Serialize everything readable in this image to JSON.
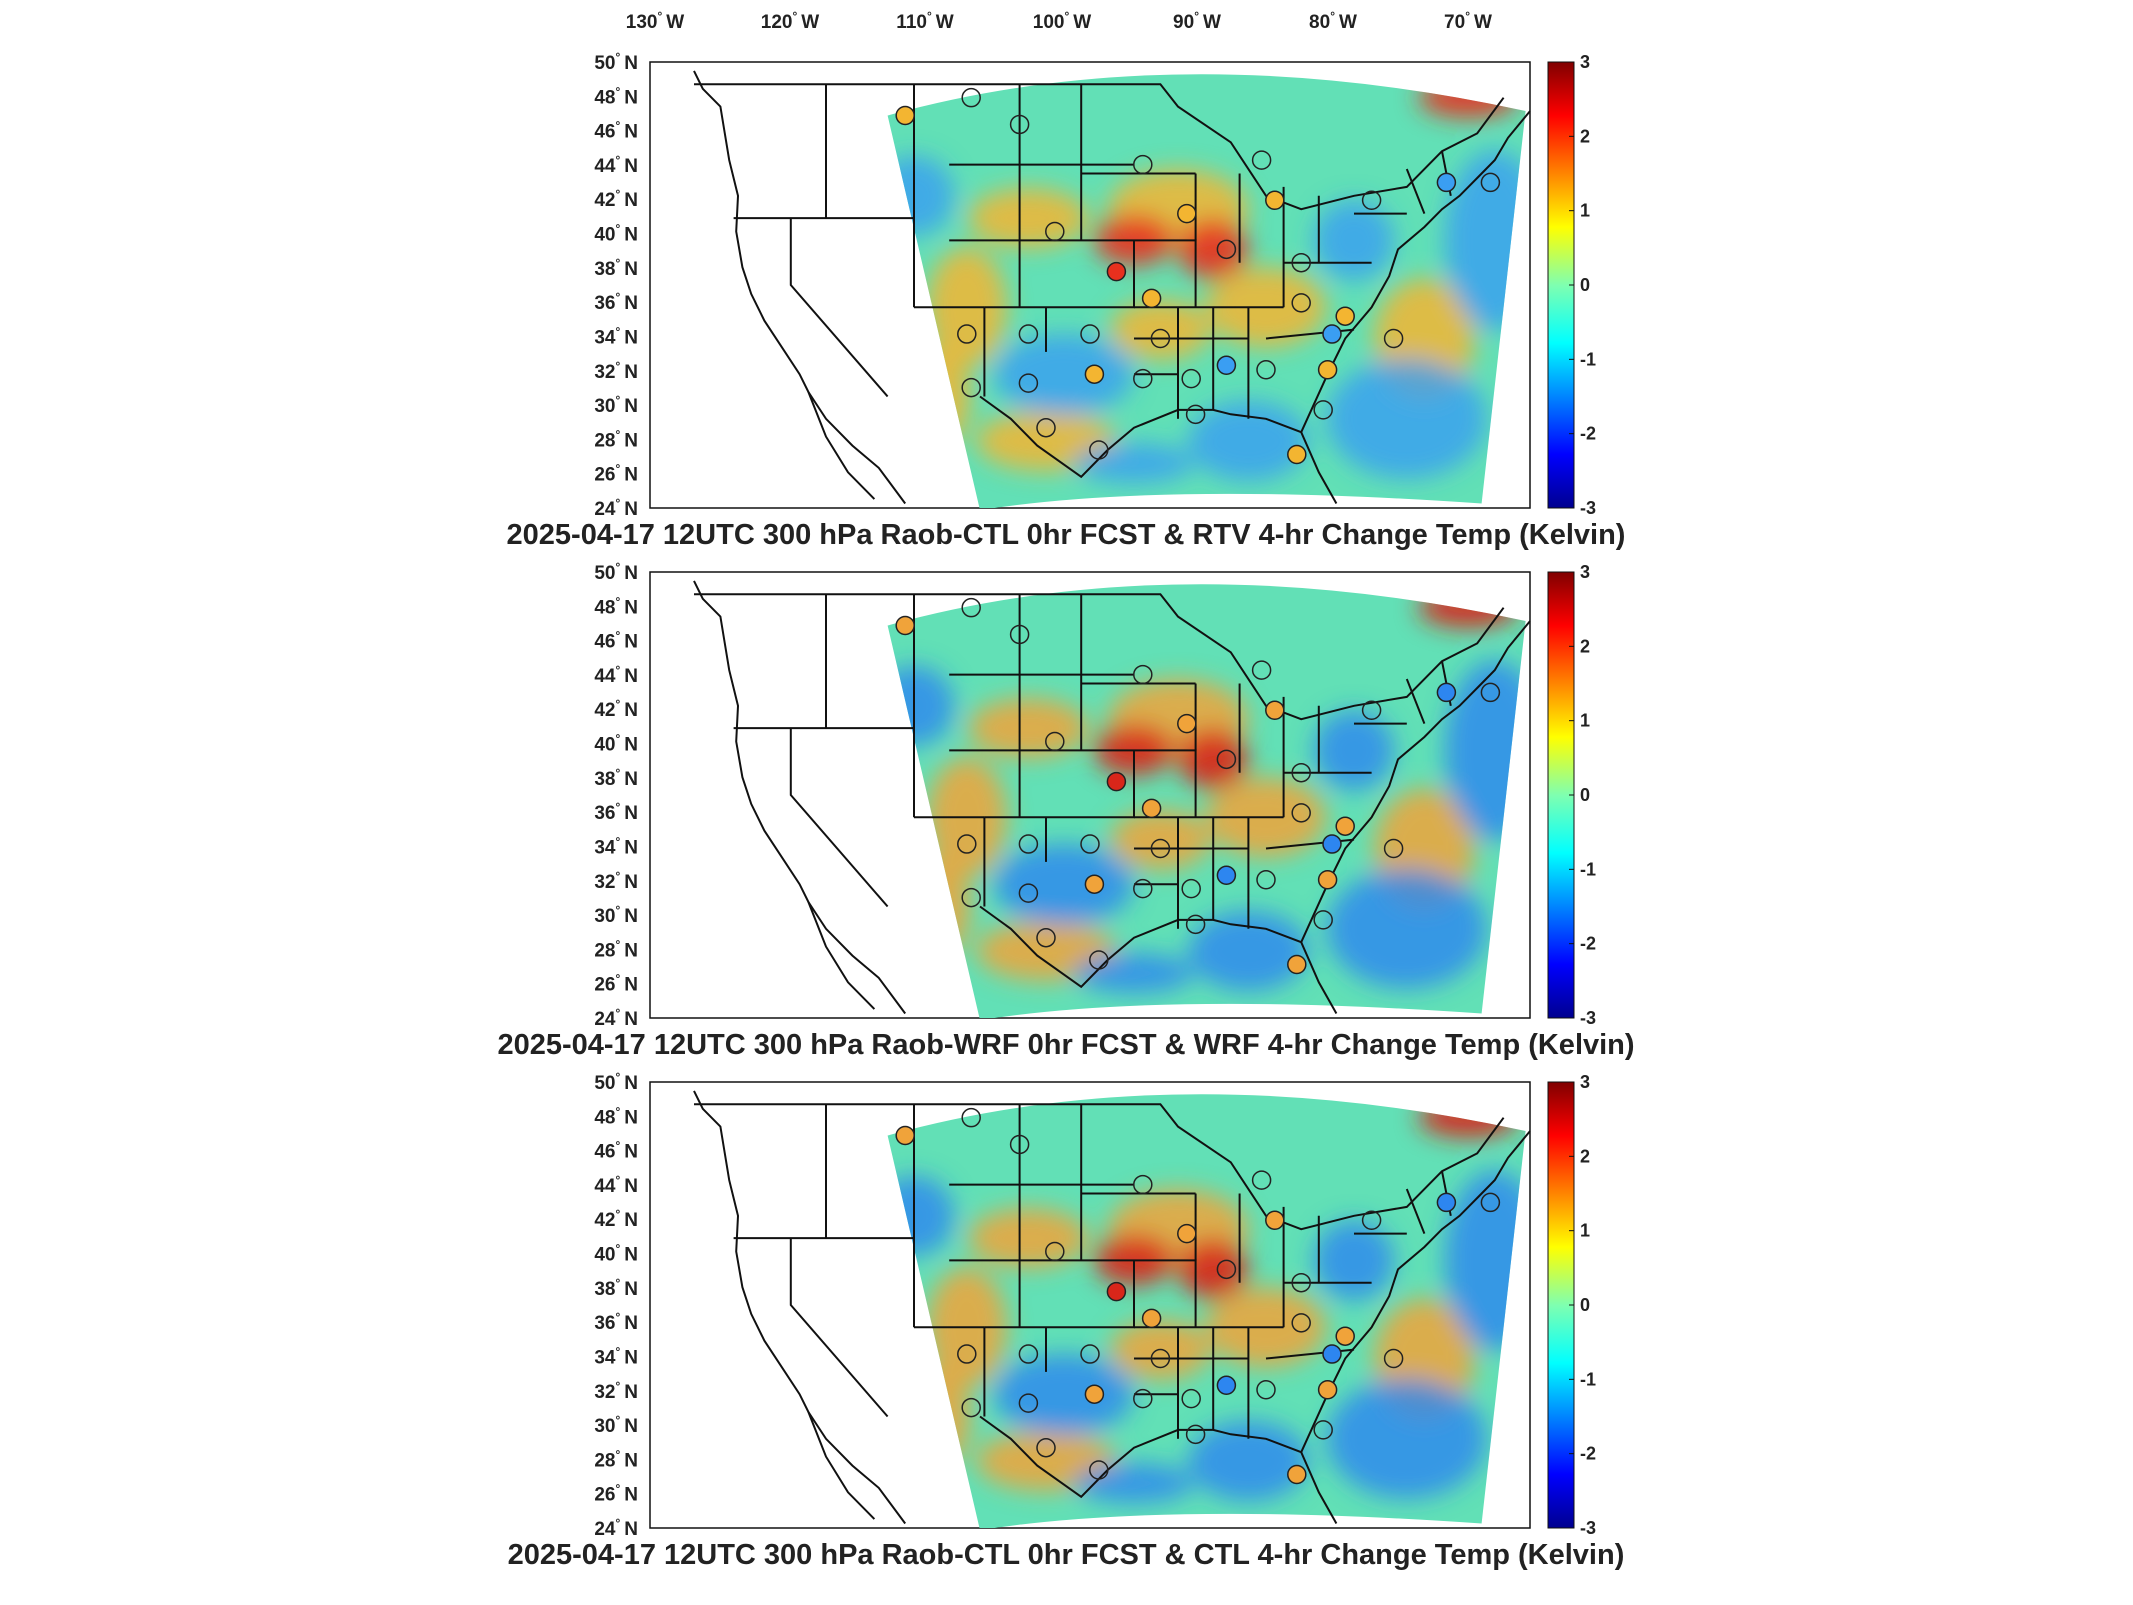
{
  "longitude_labels": [
    "130",
    "120",
    "110",
    "100",
    "90",
    "80",
    "70"
  ],
  "latitude_labels": [
    "50",
    "48",
    "46",
    "44",
    "42",
    "40",
    "38",
    "36",
    "34",
    "32",
    "30",
    "28",
    "26",
    "24"
  ],
  "lon_suffix": "W",
  "lat_suffix": "N",
  "degree_symbol": "°",
  "colorbar": {
    "min": -3,
    "max": 3,
    "ticks": [
      "3",
      "2",
      "1",
      "0",
      "-1",
      "-2",
      "-3"
    ],
    "colormap": "jet",
    "colors": [
      "#00008f",
      "#0000ff",
      "#00ffff",
      "#ffff00",
      "#ff0000",
      "#800000"
    ]
  },
  "panels": [
    {
      "title": "2025-04-17 12UTC 300 hPa Raob-CTL 0hr FCST & RTV 4-hr Change Temp (Kelvin)",
      "hot_color": "#e8301e",
      "warm_color": "#f3b531",
      "cool_color": "#3a9ef2"
    },
    {
      "title": "2025-04-17 12UTC 300 hPa Raob-WRF 0hr FCST & WRF 4-hr Change Temp (Kelvin)",
      "hot_color": "#d9261a",
      "warm_color": "#f0a33a",
      "cool_color": "#2d86f0"
    },
    {
      "title": "2025-04-17 12UTC 300 hPa Raob-CTL 0hr FCST & CTL 4-hr Change Temp (Kelvin)",
      "hot_color": "#d9261a",
      "warm_color": "#f0a33a",
      "cool_color": "#2d86f0"
    }
  ],
  "domain_background_color": "#62e0b6"
}
